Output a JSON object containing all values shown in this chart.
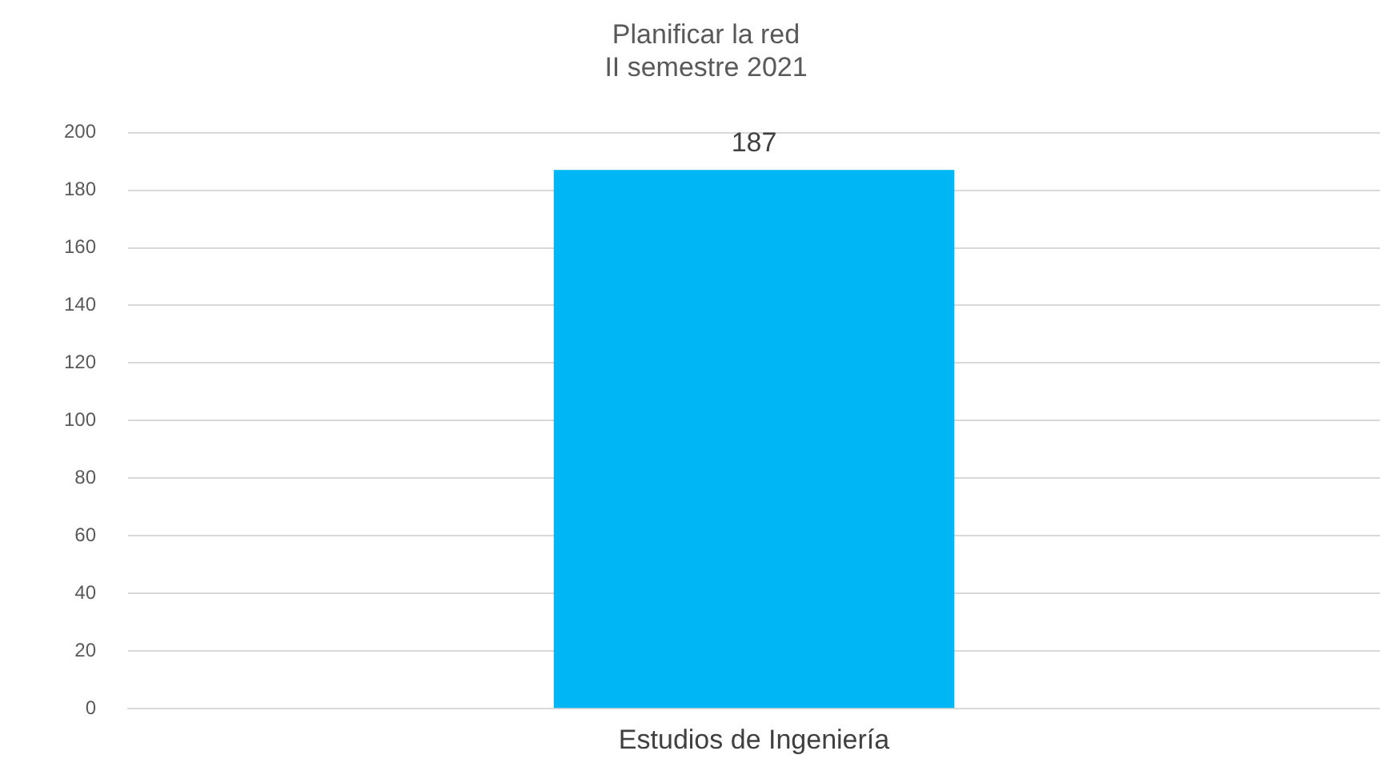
{
  "chart_data": {
    "type": "bar",
    "title": "Planificar la red\nII semestre 2021",
    "categories": [
      "Estudios de Ingeniería"
    ],
    "values": [
      187
    ],
    "color": "#00b6f4",
    "ylim": [
      0,
      200
    ],
    "yticks": [
      0,
      20,
      40,
      60,
      80,
      100,
      120,
      140,
      160,
      180,
      200
    ],
    "grid": "y",
    "data_labels": true
  }
}
